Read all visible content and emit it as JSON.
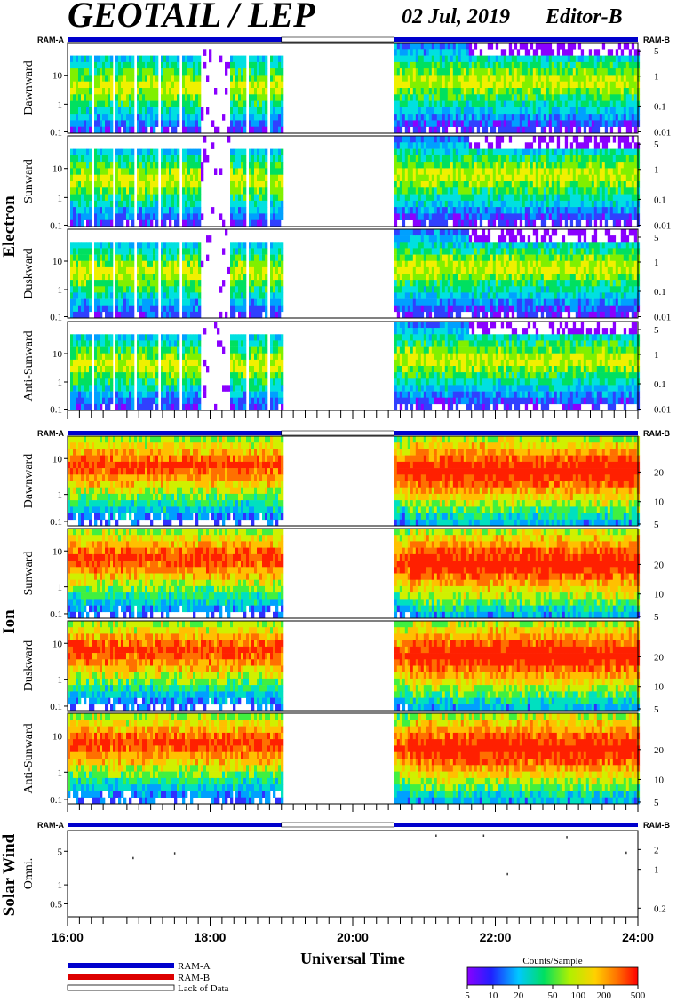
{
  "header": {
    "title": "GEOTAIL / LEP",
    "date": "02 Jul, 2019",
    "editor": "Editor-B"
  },
  "mode_labels": {
    "left": "RAM-A",
    "right": "RAM-B"
  },
  "groups": {
    "electron": "Electron",
    "ion": "Ion",
    "solar_wind": "Solar Wind"
  },
  "x_axis": {
    "label": "Universal Time",
    "ticks": [
      "16:00",
      "18:00",
      "20:00",
      "22:00",
      "24:00"
    ]
  },
  "legend": {
    "ram_a": "RAM-A",
    "ram_b": "RAM-B",
    "lack": "Lack of Data",
    "colorbar_title": "Counts/Sample",
    "colorbar_ticks": [
      "5",
      "10",
      "20",
      "50",
      "100",
      "200",
      "500"
    ]
  },
  "colors": {
    "ram_a": "#0000cc",
    "ram_b": "#dd0000",
    "lack": "#ffffff"
  },
  "chart_data": [
    {
      "type": "heatmap",
      "group": "Electron",
      "ylabel": "Dawnward",
      "left_ticks": [
        "10",
        "1",
        "0.1"
      ],
      "right_ticks": [
        "5",
        "1",
        "0.1",
        "0.01"
      ],
      "x_range": [
        "16:00",
        "24:00"
      ],
      "y_scale": "log",
      "data_gap": [
        "19:00",
        "20:35"
      ],
      "dropout": [
        "17:50",
        "18:15"
      ]
    },
    {
      "type": "heatmap",
      "group": "Electron",
      "ylabel": "Sunward",
      "left_ticks": [
        "10",
        "1",
        "0.1"
      ],
      "right_ticks": [
        "5",
        "1",
        "0.1",
        "0.01"
      ],
      "x_range": [
        "16:00",
        "24:00"
      ],
      "y_scale": "log",
      "data_gap": [
        "19:00",
        "20:35"
      ],
      "dropout": [
        "17:50",
        "18:15"
      ]
    },
    {
      "type": "heatmap",
      "group": "Electron",
      "ylabel": "Duskward",
      "left_ticks": [
        "10",
        "1",
        "0.1"
      ],
      "right_ticks": [
        "5",
        "1",
        "0.1",
        "0.01"
      ],
      "x_range": [
        "16:00",
        "24:00"
      ],
      "y_scale": "log",
      "data_gap": [
        "19:00",
        "20:35"
      ],
      "dropout": [
        "17:50",
        "18:15"
      ]
    },
    {
      "type": "heatmap",
      "group": "Electron",
      "ylabel": "Anti-Sunward",
      "left_ticks": [
        "10",
        "1",
        "0.1"
      ],
      "right_ticks": [
        "5",
        "1",
        "0.1",
        "0.01"
      ],
      "x_range": [
        "16:00",
        "24:00"
      ],
      "y_scale": "log",
      "data_gap": [
        "19:00",
        "20:35"
      ],
      "dropout": [
        "17:50",
        "18:15"
      ]
    },
    {
      "type": "heatmap",
      "group": "Ion",
      "ylabel": "Dawnward",
      "left_ticks": [
        "10",
        "1",
        "0.1"
      ],
      "right_ticks": [
        "20",
        "10",
        "5"
      ],
      "x_range": [
        "16:00",
        "24:00"
      ],
      "y_scale": "log",
      "data_gap": [
        "19:00",
        "20:35"
      ]
    },
    {
      "type": "heatmap",
      "group": "Ion",
      "ylabel": "Sunward",
      "left_ticks": [
        "10",
        "1",
        "0.1"
      ],
      "right_ticks": [
        "20",
        "10",
        "5"
      ],
      "x_range": [
        "16:00",
        "24:00"
      ],
      "y_scale": "log",
      "data_gap": [
        "19:00",
        "20:35"
      ]
    },
    {
      "type": "heatmap",
      "group": "Ion",
      "ylabel": "Duskward",
      "left_ticks": [
        "10",
        "1",
        "0.1"
      ],
      "right_ticks": [
        "20",
        "10",
        "5"
      ],
      "x_range": [
        "16:00",
        "24:00"
      ],
      "y_scale": "log",
      "data_gap": [
        "19:00",
        "20:35"
      ]
    },
    {
      "type": "heatmap",
      "group": "Ion",
      "ylabel": "Anti-Sunward",
      "left_ticks": [
        "10",
        "1",
        "0.1"
      ],
      "right_ticks": [
        "20",
        "10",
        "5"
      ],
      "x_range": [
        "16:00",
        "24:00"
      ],
      "y_scale": "log",
      "data_gap": [
        "19:00",
        "20:35"
      ]
    },
    {
      "type": "scatter",
      "group": "Solar Wind",
      "ylabel": "Omni.",
      "left_ticks": [
        "5",
        "1",
        "0.5"
      ],
      "right_ticks": [
        "2",
        "1",
        "0.2"
      ],
      "x_range": [
        "16:00",
        "24:00"
      ],
      "y_scale": "log",
      "x": [
        "16:55",
        "17:30",
        "21:10",
        "21:50",
        "22:10",
        "23:00",
        "23:50"
      ],
      "y": [
        2.9,
        3.6,
        8.0,
        8.0,
        1.4,
        7.5,
        3.7
      ]
    }
  ]
}
